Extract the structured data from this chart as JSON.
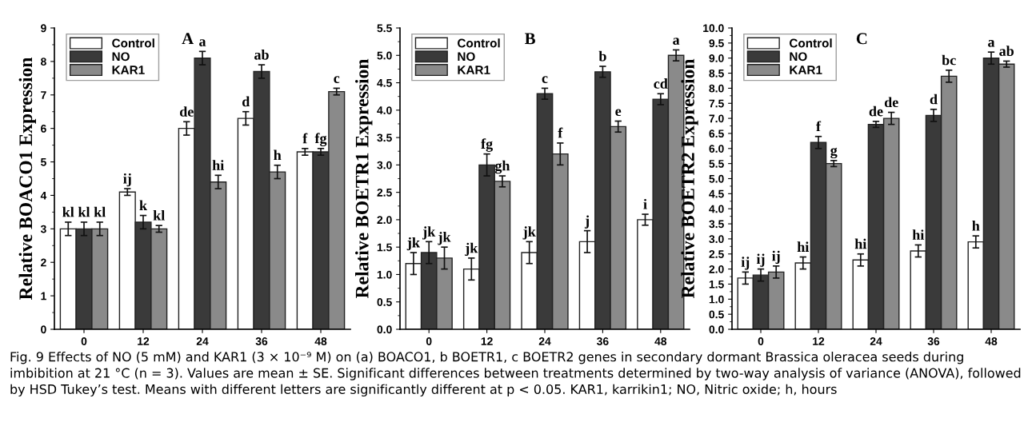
{
  "chart_data": [
    {
      "type": "bar",
      "ylabel": "Relative BOACO1 Expression",
      "categories": [
        "0",
        "12",
        "24",
        "36",
        "48"
      ],
      "ylim": [
        0,
        9
      ],
      "yticks": [
        0,
        1,
        2,
        3,
        4,
        5,
        6,
        7,
        8,
        9
      ],
      "legend": "top left",
      "annotations": [
        "A",
        "Fig. 9 Effects of NO (5 mM) and KAR1 (3 × 10⁻⁹ M) on (a) BOACO1, b BOETR1, c BOETR2 genes in secondary dormant Brassica oleracea seeds during imbibition at 21 °C (n = 3). Values are mean ± SE. Significant differences between treatments determined by two-way analysis of variance (ANOVA), followed by HSD Tukey’s test. Means with different letters are significantly different at p < 0.05. KAR1, karrikin1; NO, Nitric oxide; h, hours"
      ],
      "series": [
        {
          "name": "Control",
          "color": "#ffffff",
          "values": [
            3.0,
            4.1,
            6.0,
            6.3,
            5.3
          ],
          "errors": [
            0.2,
            0.1,
            0.2,
            0.2,
            0.1
          ],
          "value_labels": [
            "kl",
            "ij",
            "de",
            "d",
            "f"
          ]
        },
        {
          "name": "NO",
          "color": "#3a3a3a",
          "values": [
            3.0,
            3.2,
            8.1,
            7.7,
            5.3
          ],
          "errors": [
            0.2,
            0.2,
            0.2,
            0.2,
            0.1
          ],
          "value_labels": [
            "kl",
            "k",
            "a",
            "ab",
            "fg"
          ]
        },
        {
          "name": "KAR1",
          "color": "#8a8a8a",
          "values": [
            3.0,
            3.0,
            4.4,
            4.7,
            7.1
          ],
          "errors": [
            0.2,
            0.1,
            0.2,
            0.2,
            0.1
          ],
          "value_labels": [
            "kl",
            "kl",
            "hi",
            "h",
            "c"
          ]
        }
      ]
    },
    {
      "type": "bar",
      "ylabel": "Relative BOETR1 Expression",
      "categories": [
        "0",
        "12",
        "24",
        "36",
        "48"
      ],
      "ylim": [
        0,
        5.5
      ],
      "yticks": [
        {
          "value": 0,
          "label": "0.0"
        },
        {
          "value": 0.5,
          "label": "0.5"
        },
        {
          "value": 1,
          "label": "1.0"
        },
        {
          "value": 1.5,
          "label": "1.5"
        },
        {
          "value": 2,
          "label": "2.0"
        },
        {
          "value": 2.5,
          "label": "2.5"
        },
        {
          "value": 3,
          "label": "3.0"
        },
        {
          "value": 3.5,
          "label": "3.5"
        },
        {
          "value": 4,
          "label": "4.0"
        },
        {
          "value": 4.5,
          "label": "4.5"
        },
        {
          "value": 5,
          "label": "5.0"
        },
        {
          "value": 5.5,
          "label": "5.5"
        }
      ],
      "legend": "top left",
      "annotations": [
        "B"
      ],
      "series": [
        {
          "name": "Control",
          "color": "#ffffff",
          "values": [
            1.2,
            1.1,
            1.4,
            1.6,
            2.0
          ],
          "errors": [
            0.2,
            0.2,
            0.2,
            0.2,
            0.1
          ],
          "value_labels": [
            "jk",
            "jk",
            "jk",
            "j",
            "i"
          ]
        },
        {
          "name": "NO",
          "color": "#3a3a3a",
          "values": [
            1.4,
            3.0,
            4.3,
            4.7,
            4.2
          ],
          "errors": [
            0.2,
            0.2,
            0.1,
            0.1,
            0.1
          ],
          "value_labels": [
            "jk",
            "fg",
            "c",
            "b",
            "cd"
          ]
        },
        {
          "name": "KAR1",
          "color": "#8a8a8a",
          "values": [
            1.3,
            2.7,
            3.2,
            3.7,
            5.0
          ],
          "errors": [
            0.2,
            0.1,
            0.2,
            0.1,
            0.1
          ],
          "value_labels": [
            "jk",
            "gh",
            "f",
            "e",
            "a"
          ]
        }
      ]
    },
    {
      "type": "bar",
      "ylabel": "Relative BOETR2 Expression",
      "categories": [
        "0",
        "12",
        "24",
        "36",
        "48"
      ],
      "ylim": [
        0,
        10
      ],
      "yticks": [
        {
          "value": 0,
          "label": "0.0"
        },
        {
          "value": 0.5,
          "label": "0.5"
        },
        {
          "value": 1,
          "label": "1.0"
        },
        {
          "value": 1.5,
          "label": "1.5"
        },
        {
          "value": 2,
          "label": "2.0"
        },
        {
          "value": 2.5,
          "label": "2.5"
        },
        {
          "value": 3,
          "label": "3.0"
        },
        {
          "value": 3.5,
          "label": "3.5"
        },
        {
          "value": 4,
          "label": "4.0"
        },
        {
          "value": 4.5,
          "label": "4.5"
        },
        {
          "value": 5,
          "label": "5.0"
        },
        {
          "value": 5.5,
          "label": "5.5"
        },
        {
          "value": 6,
          "label": "6.0"
        },
        {
          "value": 6.5,
          "label": "6.5"
        },
        {
          "value": 7,
          "label": "7.0"
        },
        {
          "value": 7.5,
          "label": "7.5"
        },
        {
          "value": 8,
          "label": "8.0"
        },
        {
          "value": 8.5,
          "label": "8.5"
        },
        {
          "value": 9,
          "label": "9.0"
        },
        {
          "value": 9.5,
          "label": "9.5"
        },
        {
          "value": 10,
          "label": "10.0"
        }
      ],
      "legend": "top left",
      "annotations": [
        "C"
      ],
      "series": [
        {
          "name": "Control",
          "color": "#ffffff",
          "values": [
            1.7,
            2.2,
            2.3,
            2.6,
            2.9
          ],
          "errors": [
            0.2,
            0.2,
            0.2,
            0.2,
            0.2
          ],
          "value_labels": [
            "ij",
            "hi",
            "hi",
            "hi",
            "h"
          ]
        },
        {
          "name": "NO",
          "color": "#3a3a3a",
          "values": [
            1.8,
            6.2,
            6.8,
            7.1,
            9.0
          ],
          "errors": [
            0.2,
            0.2,
            0.1,
            0.2,
            0.2
          ],
          "value_labels": [
            "ij",
            "f",
            "de",
            "d",
            "a"
          ]
        },
        {
          "name": "KAR1",
          "color": "#8a8a8a",
          "values": [
            1.9,
            5.5,
            7.0,
            8.4,
            8.8
          ],
          "errors": [
            0.2,
            0.1,
            0.2,
            0.2,
            0.1
          ],
          "value_labels": [
            "ij",
            "g",
            "de",
            "bc",
            "ab"
          ]
        }
      ]
    }
  ]
}
